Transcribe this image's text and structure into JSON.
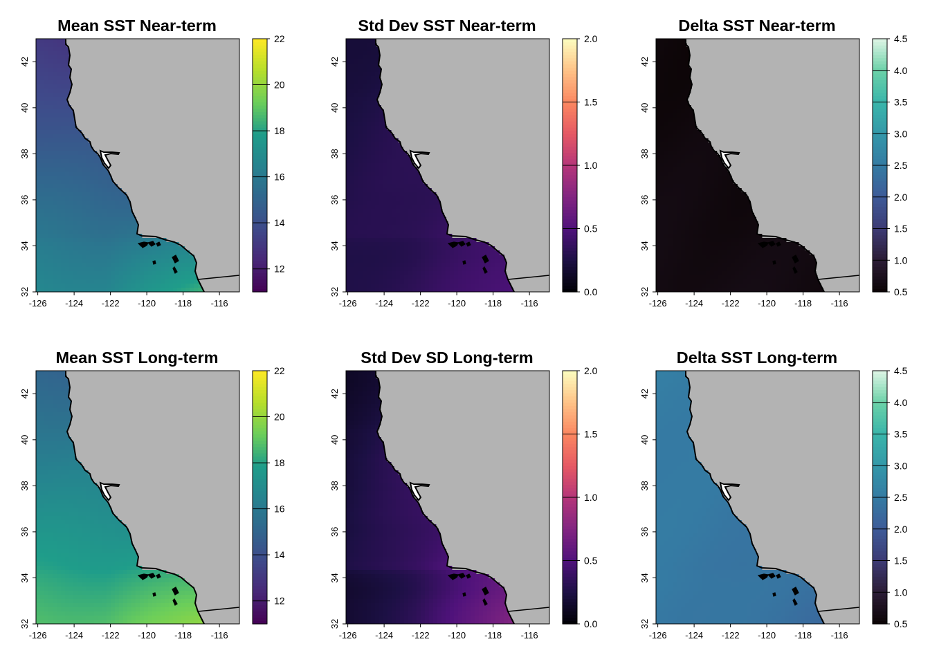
{
  "figure": {
    "x_axis_ticks": [
      "-126",
      "-124",
      "-122",
      "-120",
      "-118",
      "-116"
    ],
    "y_axis_ticks": [
      "32",
      "34",
      "36",
      "38",
      "40",
      "42"
    ],
    "extent": {
      "lon": [
        -126.1,
        -114.9
      ],
      "lat": [
        32,
        43
      ]
    },
    "land_color": "#b3b3b3",
    "coast_color": "#000000"
  },
  "panels": [
    {
      "title": "Mean SST Near-term",
      "palette": "viridis",
      "colorbar_ticks": [
        "12",
        "14",
        "16",
        "18",
        "20",
        "22"
      ],
      "range": [
        11,
        22
      ],
      "field": {
        "north": 13.0,
        "south": 16.3,
        "southeast_bonus": 2.2,
        "offshore_gradient": 0.4
      }
    },
    {
      "title": "Std Dev SST Near-term",
      "palette": "magma",
      "colorbar_ticks": [
        "0.0",
        "0.5",
        "1.0",
        "1.5",
        "2.0"
      ],
      "range": [
        0,
        2
      ],
      "field": {
        "north": 0.22,
        "south": 0.42,
        "southeast_bonus": 0.08,
        "offshore_gradient": -0.12
      }
    },
    {
      "title": "Delta SST Near-term",
      "palette": "mako",
      "colorbar_ticks": [
        "0.5",
        "1.0",
        "1.5",
        "2.0",
        "2.5",
        "3.0",
        "3.5",
        "4.0",
        "4.5"
      ],
      "range": [
        0.5,
        4.5
      ],
      "field": {
        "north": 0.55,
        "south": 0.62,
        "southeast_bonus": 0.0,
        "offshore_gradient": 0.02
      }
    },
    {
      "title": "Mean SST Long-term",
      "palette": "viridis",
      "colorbar_ticks": [
        "12",
        "14",
        "16",
        "18",
        "20",
        "22"
      ],
      "range": [
        11,
        22
      ],
      "field": {
        "north": 15.0,
        "south": 18.6,
        "southeast_bonus": 1.4,
        "offshore_gradient": 0.2
      }
    },
    {
      "title": "Std Dev SD Long-term",
      "palette": "magma",
      "colorbar_ticks": [
        "0.0",
        "0.5",
        "1.0",
        "1.5",
        "2.0"
      ],
      "range": [
        0,
        2
      ],
      "field": {
        "north": 0.18,
        "south": 0.55,
        "southeast_bonus": 0.22,
        "offshore_gradient": -0.3
      }
    },
    {
      "title": "Delta SST Long-term",
      "palette": "mako",
      "colorbar_ticks": [
        "0.5",
        "1.0",
        "1.5",
        "2.0",
        "2.5",
        "3.0",
        "3.5",
        "4.0",
        "4.5"
      ],
      "range": [
        0.5,
        4.5
      ],
      "field": {
        "north": 2.55,
        "south": 2.35,
        "southeast_bonus": -0.1,
        "offshore_gradient": 0.1
      }
    }
  ]
}
